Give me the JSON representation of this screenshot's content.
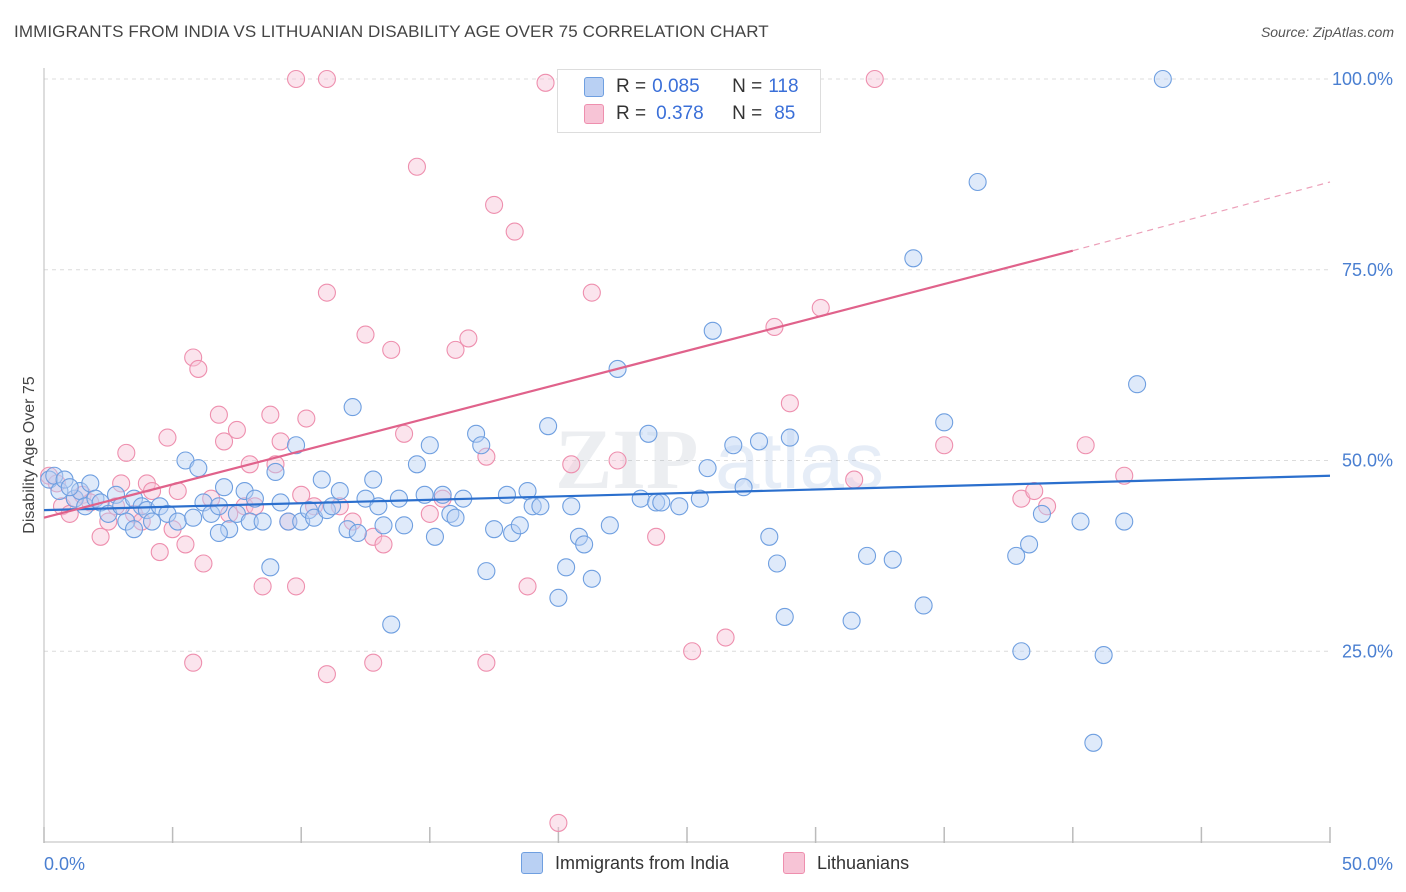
{
  "title": "IMMIGRANTS FROM INDIA VS LITHUANIAN DISABILITY AGE OVER 75 CORRELATION CHART",
  "source": "Source: ZipAtlas.com",
  "legend": {
    "r_label": "R =",
    "n_label": "N =",
    "india": {
      "r": "0.085",
      "n": "118"
    },
    "lithuanians": {
      "r": "0.378",
      "n": "85"
    }
  },
  "watermark": {
    "zip": "ZIP",
    "atlas": "atlas"
  },
  "colors": {
    "india": "#6f9fe0",
    "india_fill": "#b9d0f3",
    "india_line": "#2b6fcd",
    "lithuanians": "#ee8fae",
    "lithuanians_fill": "#f7c4d6",
    "lithuanians_line": "#e0628b",
    "tick": "#4a7fd1"
  },
  "chart_data": {
    "type": "scatter",
    "xlabel": "",
    "ylabel": "Disability Age Over 75",
    "x_tick_labels": [
      "0.0%",
      "50.0%"
    ],
    "y_tick_labels": [
      "100.0%",
      "75.0%",
      "50.0%",
      "25.0%"
    ],
    "xlim": [
      0,
      50
    ],
    "ylim": [
      0,
      103
    ],
    "grid": true,
    "series": [
      {
        "name": "Immigrants from India",
        "points": [
          [
            0.2,
            47.5
          ],
          [
            0.4,
            48
          ],
          [
            0.6,
            46
          ],
          [
            0.8,
            47.5
          ],
          [
            1.2,
            45
          ],
          [
            1.4,
            46
          ],
          [
            1.6,
            44
          ],
          [
            1.8,
            47
          ],
          [
            2,
            45
          ],
          [
            2.2,
            44.5
          ],
          [
            2.5,
            43
          ],
          [
            2.8,
            45.5
          ],
          [
            3,
            44
          ],
          [
            3.2,
            42
          ],
          [
            3.5,
            45
          ],
          [
            3.8,
            44
          ],
          [
            4,
            43.5
          ],
          [
            4.2,
            42
          ],
          [
            4.5,
            44
          ],
          [
            4.8,
            43
          ],
          [
            5.2,
            42
          ],
          [
            5.5,
            50
          ],
          [
            5.8,
            42.5
          ],
          [
            6,
            49
          ],
          [
            6.2,
            44.5
          ],
          [
            6.5,
            43
          ],
          [
            6.8,
            44
          ],
          [
            7,
            46.5
          ],
          [
            7.2,
            41
          ],
          [
            7.5,
            43
          ],
          [
            7.8,
            46
          ],
          [
            8,
            42
          ],
          [
            8.2,
            45
          ],
          [
            8.5,
            42
          ],
          [
            8.8,
            36
          ],
          [
            9,
            48.5
          ],
          [
            9.2,
            44.5
          ],
          [
            9.5,
            42
          ],
          [
            9.8,
            52
          ],
          [
            10,
            42
          ],
          [
            10.3,
            43.5
          ],
          [
            10.5,
            42.5
          ],
          [
            10.8,
            47.5
          ],
          [
            11,
            43.5
          ],
          [
            11.2,
            44
          ],
          [
            11.5,
            46
          ],
          [
            11.8,
            41
          ],
          [
            12,
            57
          ],
          [
            12.2,
            40.5
          ],
          [
            12.5,
            45
          ],
          [
            12.8,
            47.5
          ],
          [
            13,
            44
          ],
          [
            13.2,
            41.5
          ],
          [
            13.5,
            28.5
          ],
          [
            13.8,
            45
          ],
          [
            14,
            41.5
          ],
          [
            14.5,
            49.5
          ],
          [
            14.8,
            45.5
          ],
          [
            15,
            52
          ],
          [
            15.2,
            40
          ],
          [
            15.5,
            45.5
          ],
          [
            15.8,
            43
          ],
          [
            16,
            42.5
          ],
          [
            16.3,
            45
          ],
          [
            16.8,
            53.5
          ],
          [
            17,
            52
          ],
          [
            17.2,
            35.5
          ],
          [
            17.5,
            41
          ],
          [
            18,
            45.5
          ],
          [
            18.2,
            40.5
          ],
          [
            18.5,
            41.5
          ],
          [
            18.8,
            46
          ],
          [
            19,
            44
          ],
          [
            19.3,
            44
          ],
          [
            19.6,
            54.5
          ],
          [
            20,
            32
          ],
          [
            20.3,
            36
          ],
          [
            20.5,
            44
          ],
          [
            20.8,
            40
          ],
          [
            21,
            39
          ],
          [
            21.3,
            34.5
          ],
          [
            22,
            41.5
          ],
          [
            22.3,
            62
          ],
          [
            23.2,
            45
          ],
          [
            23.5,
            53.5
          ],
          [
            23.8,
            44.5
          ],
          [
            24,
            44.5
          ],
          [
            24.7,
            44
          ],
          [
            25.5,
            45
          ],
          [
            25.8,
            49
          ],
          [
            26,
            67
          ],
          [
            26.8,
            52
          ],
          [
            27.2,
            46.5
          ],
          [
            27.8,
            52.5
          ],
          [
            28.2,
            40
          ],
          [
            28.5,
            36.5
          ],
          [
            28.8,
            29.5
          ],
          [
            29,
            53
          ],
          [
            31.4,
            29
          ],
          [
            32,
            37.5
          ],
          [
            33,
            37
          ],
          [
            33.8,
            76.5
          ],
          [
            34.2,
            31
          ],
          [
            35,
            55
          ],
          [
            36.3,
            86.5
          ],
          [
            37.8,
            37.5
          ],
          [
            38,
            25
          ],
          [
            38.3,
            39
          ],
          [
            38.8,
            43
          ],
          [
            40.3,
            42
          ],
          [
            40.8,
            13
          ],
          [
            41.2,
            24.5
          ],
          [
            42,
            42
          ],
          [
            42.5,
            60
          ],
          [
            43.5,
            100
          ],
          [
            1,
            46.5
          ],
          [
            3.5,
            41
          ],
          [
            6.8,
            40.5
          ]
        ],
        "trend": {
          "x": [
            0,
            50
          ],
          "y": [
            43.5,
            48
          ]
        }
      },
      {
        "name": "Lithuanians",
        "points": [
          [
            0.2,
            48
          ],
          [
            0.5,
            47
          ],
          [
            0.7,
            44
          ],
          [
            1,
            43
          ],
          [
            1.2,
            45
          ],
          [
            1.5,
            45.5
          ],
          [
            1.8,
            44.5
          ],
          [
            2.2,
            40
          ],
          [
            2.5,
            42
          ],
          [
            2.8,
            44
          ],
          [
            3,
            47
          ],
          [
            3.2,
            51
          ],
          [
            3.5,
            43
          ],
          [
            3.8,
            42
          ],
          [
            4,
            47
          ],
          [
            4.2,
            46
          ],
          [
            4.5,
            38
          ],
          [
            4.8,
            53
          ],
          [
            5,
            41
          ],
          [
            5.2,
            46
          ],
          [
            5.5,
            39
          ],
          [
            5.8,
            63.5
          ],
          [
            6,
            62
          ],
          [
            6.2,
            36.5
          ],
          [
            6.5,
            45
          ],
          [
            6.8,
            56
          ],
          [
            7,
            52.5
          ],
          [
            7.2,
            43
          ],
          [
            7.5,
            54
          ],
          [
            7.8,
            44
          ],
          [
            8,
            49.5
          ],
          [
            8.2,
            44
          ],
          [
            8.5,
            33.5
          ],
          [
            8.8,
            56
          ],
          [
            9,
            49.5
          ],
          [
            9.2,
            52.5
          ],
          [
            9.5,
            42
          ],
          [
            9.8,
            33.5
          ],
          [
            10,
            45.5
          ],
          [
            10.2,
            55.5
          ],
          [
            10.5,
            44
          ],
          [
            11,
            72
          ],
          [
            11.5,
            44
          ],
          [
            12,
            42
          ],
          [
            12.5,
            66.5
          ],
          [
            12.8,
            40
          ],
          [
            13.2,
            39
          ],
          [
            13.5,
            64.5
          ],
          [
            14,
            53.5
          ],
          [
            14.5,
            88.5
          ],
          [
            15,
            43
          ],
          [
            15.5,
            45
          ],
          [
            16,
            64.5
          ],
          [
            16.5,
            66
          ],
          [
            17.2,
            50.5
          ],
          [
            17.5,
            83.5
          ],
          [
            18.3,
            80
          ],
          [
            18.8,
            33.5
          ],
          [
            19.5,
            99.5
          ],
          [
            20.5,
            49.5
          ],
          [
            21,
            98
          ],
          [
            21.3,
            72
          ],
          [
            22.3,
            50
          ],
          [
            23.5,
            99
          ],
          [
            23.8,
            40
          ],
          [
            25.2,
            25
          ],
          [
            26.5,
            26.8
          ],
          [
            28.4,
            67.5
          ],
          [
            29,
            57.5
          ],
          [
            30.2,
            70
          ],
          [
            31.5,
            47.5
          ],
          [
            32.3,
            100
          ],
          [
            35,
            52
          ],
          [
            38,
            45
          ],
          [
            38.5,
            46
          ],
          [
            39,
            44
          ],
          [
            40.5,
            52
          ],
          [
            42,
            48
          ],
          [
            11,
            22
          ],
          [
            5.8,
            23.5
          ],
          [
            12.8,
            23.5
          ],
          [
            17.2,
            23.5
          ],
          [
            20,
            2.5
          ],
          [
            11,
            100
          ],
          [
            9.8,
            100
          ]
        ],
        "trend": {
          "x": [
            0,
            40
          ],
          "y": [
            42.5,
            77.5
          ]
        },
        "trend_dashed": {
          "x": [
            40,
            50
          ],
          "y": [
            77.5,
            86.5
          ]
        }
      }
    ]
  }
}
